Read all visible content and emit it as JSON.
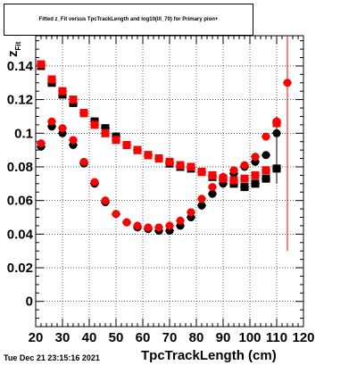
{
  "title": "Fitted  z_Fit  versus TpcTrackLength and log10(I/I_70) for Primary pion+",
  "footer": "Tue Dec 21 23:15:16 2021",
  "chart_data": {
    "type": "scatter",
    "title": "Fitted  z_Fit  versus TpcTrackLength and log10(I/I_70) for Primary pion+",
    "xlabel": "TpcTrackLength (cm)",
    "ylabel": "z",
    "ylabel_sub": "Fit",
    "xlim": [
      20,
      120
    ],
    "ylim": [
      -0.015,
      0.158
    ],
    "x_ticks": [
      20,
      30,
      40,
      50,
      60,
      70,
      80,
      90,
      100,
      110,
      120
    ],
    "x_tick_labels": [
      "20",
      "30",
      "40",
      "50",
      "60",
      "70",
      "80",
      "90",
      "100",
      "110",
      "120"
    ],
    "y_ticks": [
      0,
      0.02,
      0.04,
      0.06,
      0.08,
      0.1,
      0.12,
      0.14
    ],
    "y_tick_labels": [
      "0",
      "0.02",
      "0.04",
      "0.06",
      "0.08",
      "0.1",
      "0.12",
      "0.14"
    ],
    "grid": true,
    "series": [
      {
        "marker": "square",
        "color": "#000000",
        "points": [
          [
            22,
            0.14
          ],
          [
            26,
            0.13
          ],
          [
            30,
            0.123
          ],
          [
            34,
            0.118
          ],
          [
            38,
            0.112
          ],
          [
            42,
            0.107
          ],
          [
            46,
            0.103
          ],
          [
            50,
            0.098
          ],
          [
            54,
            0.093
          ],
          [
            58,
            0.09
          ],
          [
            62,
            0.087
          ],
          [
            66,
            0.085
          ],
          [
            70,
            0.082
          ],
          [
            74,
            0.08
          ],
          [
            78,
            0.079
          ],
          [
            82,
            0.077
          ],
          [
            86,
            0.074
          ],
          [
            90,
            0.072
          ],
          [
            94,
            0.07
          ],
          [
            98,
            0.068
          ],
          [
            102,
            0.07
          ],
          [
            106,
            0.073
          ],
          [
            110,
            0.079
          ]
        ]
      },
      {
        "marker": "circle",
        "color": "#000000",
        "points": [
          [
            22,
            0.092
          ],
          [
            26,
            0.104
          ],
          [
            30,
            0.1
          ],
          [
            34,
            0.093
          ],
          [
            38,
            0.082
          ],
          [
            42,
            0.07
          ],
          [
            46,
            0.059
          ],
          [
            50,
            0.052
          ],
          [
            54,
            0.047
          ],
          [
            58,
            0.044
          ],
          [
            62,
            0.043
          ],
          [
            66,
            0.042
          ],
          [
            70,
            0.042
          ],
          [
            74,
            0.045
          ],
          [
            78,
            0.05
          ],
          [
            82,
            0.057
          ],
          [
            86,
            0.064
          ],
          [
            90,
            0.07
          ],
          [
            94,
            0.076
          ],
          [
            98,
            0.08
          ],
          [
            102,
            0.083
          ],
          [
            106,
            0.087
          ],
          [
            110,
            0.1
          ]
        ]
      },
      {
        "marker": "square",
        "color": "#ff0000",
        "points": [
          [
            22,
            0.141
          ],
          [
            26,
            0.132
          ],
          [
            30,
            0.125
          ],
          [
            34,
            0.12
          ],
          [
            38,
            0.112
          ],
          [
            42,
            0.105
          ],
          [
            46,
            0.1
          ],
          [
            50,
            0.096
          ],
          [
            54,
            0.093
          ],
          [
            58,
            0.09
          ],
          [
            62,
            0.087
          ],
          [
            66,
            0.085
          ],
          [
            70,
            0.083
          ],
          [
            74,
            0.081
          ],
          [
            78,
            0.08
          ],
          [
            82,
            0.077
          ],
          [
            86,
            0.075
          ],
          [
            90,
            0.073
          ],
          [
            94,
            0.072
          ],
          [
            98,
            0.073
          ],
          [
            102,
            0.075
          ],
          [
            106,
            0.078
          ],
          [
            110,
            0.106
          ]
        ]
      },
      {
        "marker": "circle",
        "color": "#ff0000",
        "points": [
          [
            22,
            0.094
          ],
          [
            26,
            0.107
          ],
          [
            30,
            0.103
          ],
          [
            34,
            0.096
          ],
          [
            38,
            0.083
          ],
          [
            42,
            0.071
          ],
          [
            46,
            0.06
          ],
          [
            50,
            0.052
          ],
          [
            54,
            0.047
          ],
          [
            58,
            0.045
          ],
          [
            62,
            0.044
          ],
          [
            66,
            0.044
          ],
          [
            70,
            0.045
          ],
          [
            74,
            0.048
          ],
          [
            78,
            0.053
          ],
          [
            82,
            0.061
          ],
          [
            86,
            0.068
          ],
          [
            90,
            0.074
          ],
          [
            94,
            0.078
          ],
          [
            98,
            0.081
          ],
          [
            102,
            0.086
          ],
          [
            106,
            0.098
          ],
          [
            110,
            0.107
          ],
          [
            114,
            0.13
          ]
        ]
      }
    ],
    "error_bars": [
      {
        "x": 114,
        "low": 0.03,
        "high": 0.158,
        "color": "#ff0000"
      },
      {
        "x": 110,
        "low": 0.07,
        "high": 0.11,
        "color": "#000000"
      }
    ]
  }
}
